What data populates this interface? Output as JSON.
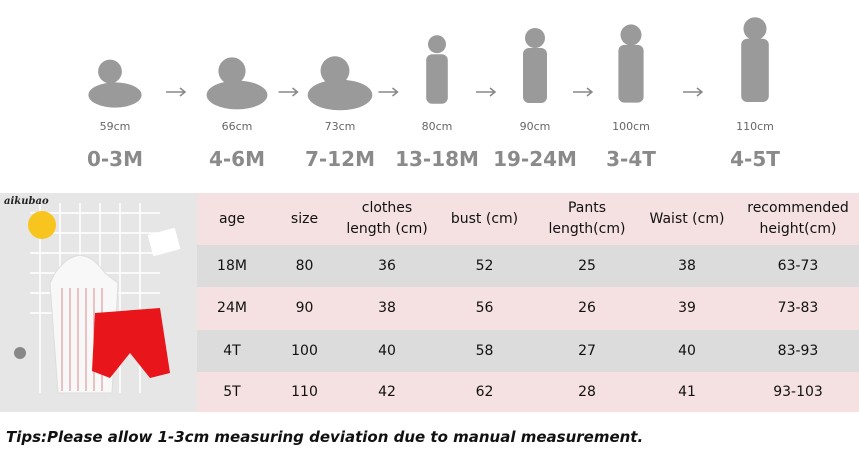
{
  "stages": [
    {
      "height": "59cm",
      "age": "0-3M"
    },
    {
      "height": "66cm",
      "age": "4-6M"
    },
    {
      "height": "73cm",
      "age": "7-12M"
    },
    {
      "height": "80cm",
      "age": "13-18M"
    },
    {
      "height": "90cm",
      "age": "19-24M"
    },
    {
      "height": "100cm",
      "age": "3-4T"
    },
    {
      "height": "110cm",
      "age": "4-5T"
    }
  ],
  "photo": {
    "brand": "aikubao"
  },
  "table": {
    "header": [
      "age",
      "size",
      "clothes length (cm)",
      "bust (cm)",
      "Pants length(cm)",
      "Waist (cm)",
      "recommended height(cm)"
    ],
    "rows": [
      [
        "18M",
        "80",
        "36",
        "52",
        "25",
        "38",
        "63-73"
      ],
      [
        "24M",
        "90",
        "38",
        "56",
        "26",
        "39",
        "73-83"
      ],
      [
        "4T",
        "100",
        "40",
        "58",
        "27",
        "40",
        "83-93"
      ],
      [
        "5T",
        "110",
        "42",
        "62",
        "28",
        "41",
        "93-103"
      ]
    ]
  },
  "tip": "Tips:Please allow 1-3cm measuring deviation due to manual measurement."
}
